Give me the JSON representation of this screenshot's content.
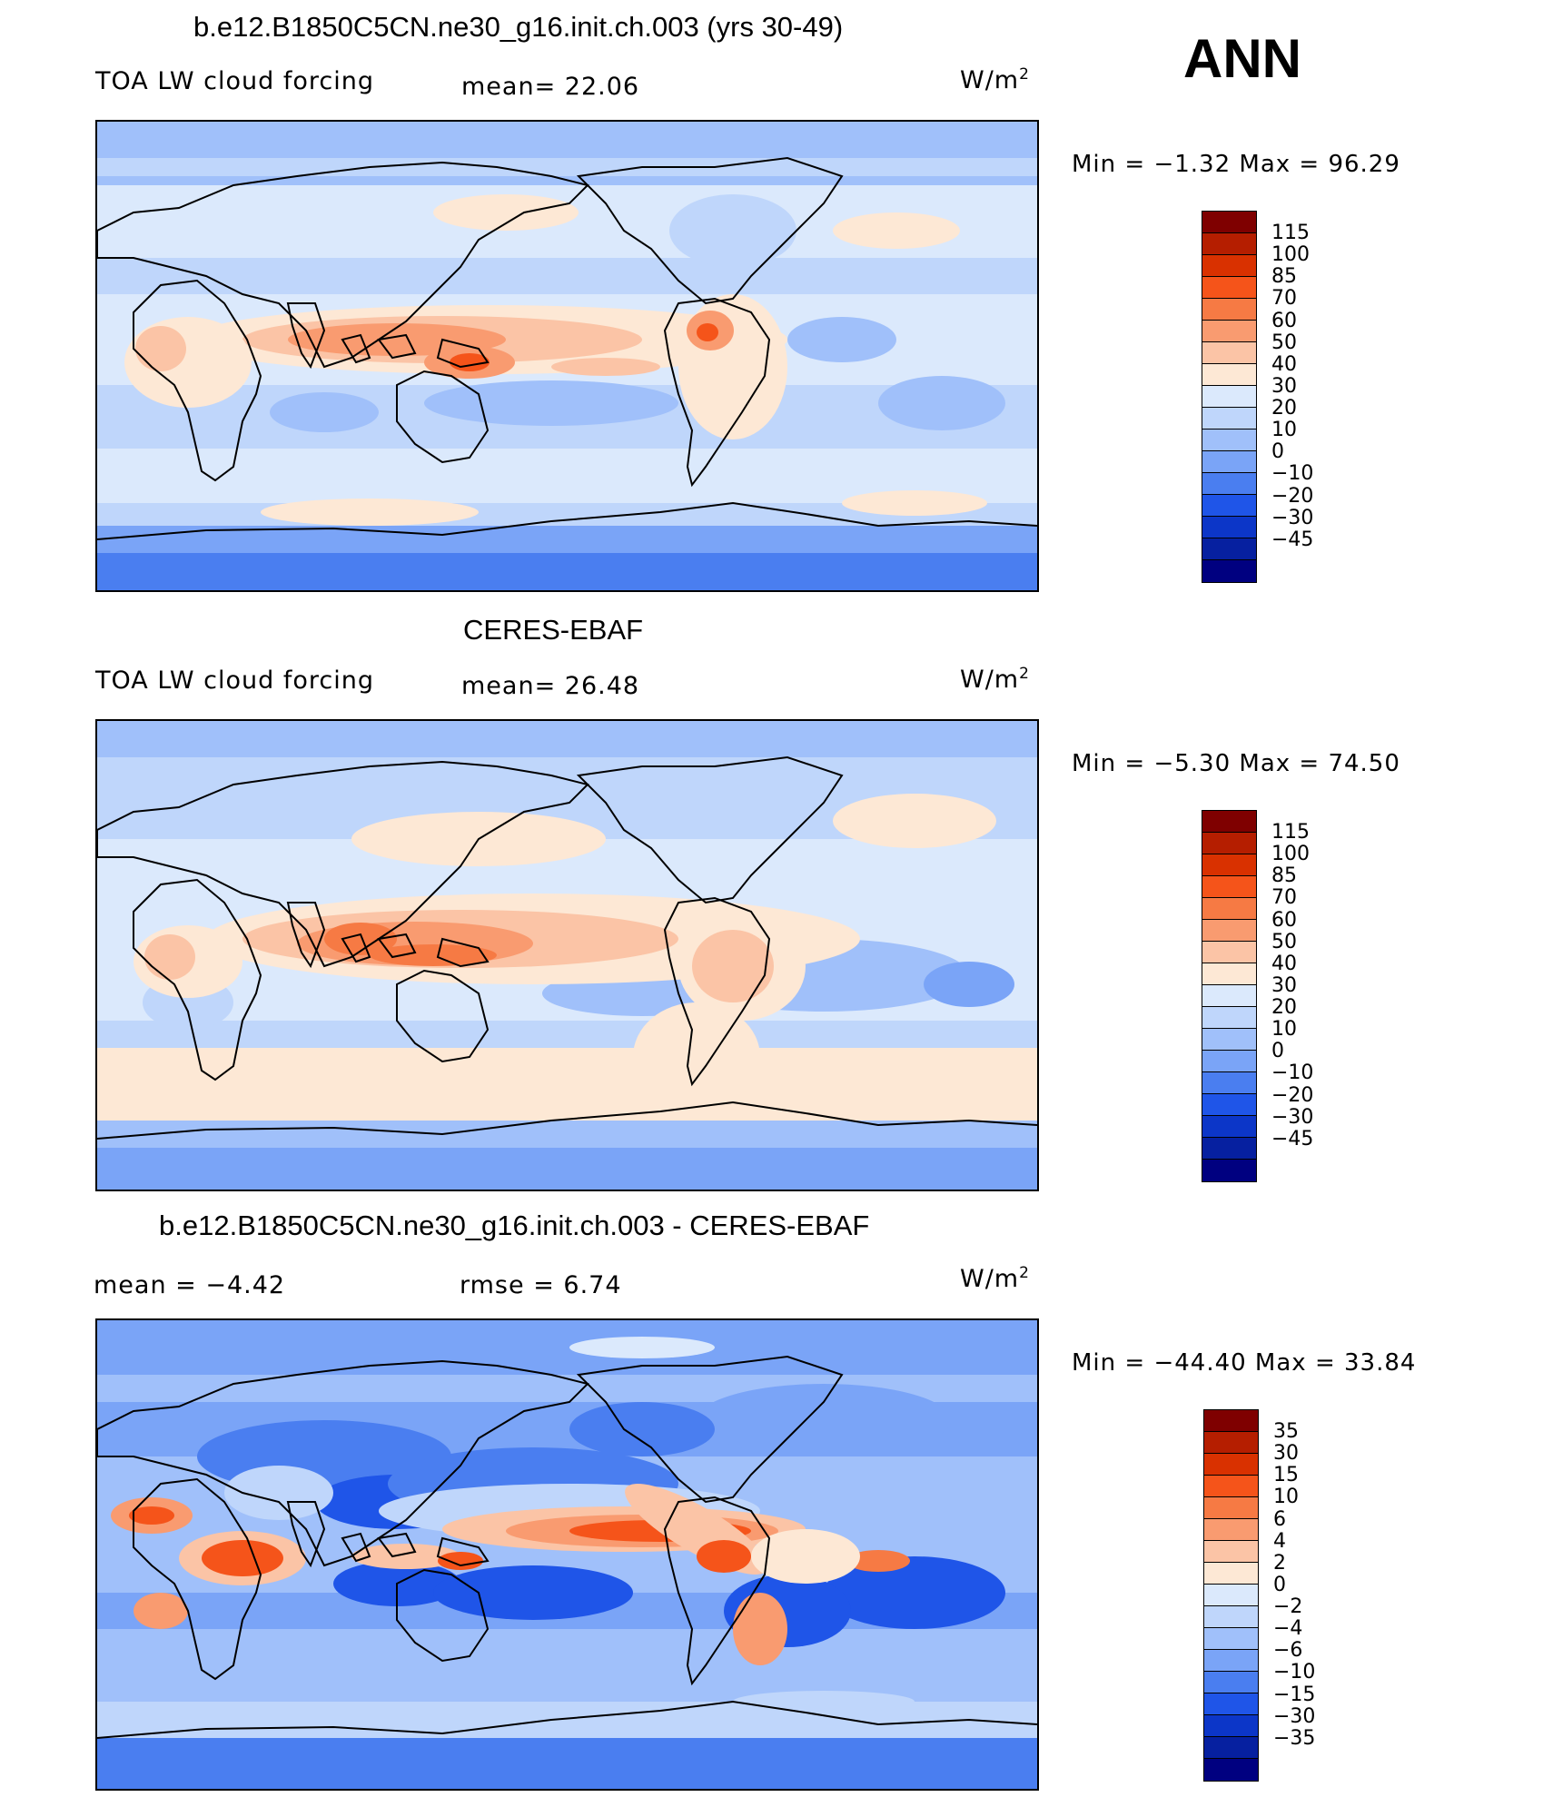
{
  "header": {
    "season": "ANN"
  },
  "panels": [
    {
      "title": "b.e12.B1850C5CN.ne30_g16.init.ch.003 (yrs 30-49)",
      "left_text": "TOA LW cloud forcing",
      "mid_text": "mean=   22.06",
      "units": "W/m",
      "units_sup": "2",
      "stats": "Min  =    −1.32  Max  =    96.29",
      "colorbar": {
        "labels": [
          "115",
          "100",
          "85",
          "70",
          "60",
          "50",
          "40",
          "30",
          "20",
          "10",
          "0",
          "−10",
          "−20",
          "−30",
          "−45"
        ],
        "colors": [
          "#7f0000",
          "#b51e00",
          "#d93100",
          "#f5541a",
          "#f67a44",
          "#f99b70",
          "#fbc4a6",
          "#fde8d5",
          "#dbe9fc",
          "#bfd6fb",
          "#a0c0fa",
          "#7aa4f7",
          "#4a7ef0",
          "#1f55e8",
          "#0c36c8",
          "#0620a0",
          "#000080"
        ]
      },
      "map_key": "model"
    },
    {
      "title": "CERES-EBAF",
      "left_text": "TOA LW cloud forcing",
      "mid_text": "mean=   26.48",
      "units": "W/m",
      "units_sup": "2",
      "stats": "Min  =    −5.30  Max  =    74.50",
      "colorbar": {
        "labels": [
          "115",
          "100",
          "85",
          "70",
          "60",
          "50",
          "40",
          "30",
          "20",
          "10",
          "0",
          "−10",
          "−20",
          "−30",
          "−45"
        ],
        "colors": [
          "#7f0000",
          "#b51e00",
          "#d93100",
          "#f5541a",
          "#f67a44",
          "#f99b70",
          "#fbc4a6",
          "#fde8d5",
          "#dbe9fc",
          "#bfd6fb",
          "#a0c0fa",
          "#7aa4f7",
          "#4a7ef0",
          "#1f55e8",
          "#0c36c8",
          "#0620a0",
          "#000080"
        ]
      },
      "map_key": "obs"
    },
    {
      "title": "b.e12.B1850C5CN.ne30_g16.init.ch.003 - CERES-EBAF",
      "left_text": "mean  =    −4.42",
      "mid_text": "rmse  =    6.74",
      "units": "W/m",
      "units_sup": "2",
      "stats": "Min  = −44.40  Max  =    33.84",
      "colorbar": {
        "labels": [
          "35",
          "30",
          "15",
          "10",
          "6",
          "4",
          "2",
          "0",
          "−2",
          "−4",
          "−6",
          "−10",
          "−15",
          "−30",
          "−35"
        ],
        "colors": [
          "#7f0000",
          "#b51e00",
          "#d93100",
          "#f5541a",
          "#f67a44",
          "#f99b70",
          "#fbc4a6",
          "#fde8d5",
          "#dbe9fc",
          "#bfd6fb",
          "#a0c0fa",
          "#7aa4f7",
          "#4a7ef0",
          "#1f55e8",
          "#0c36c8",
          "#0620a0",
          "#000080"
        ]
      },
      "map_key": "diff"
    }
  ]
}
